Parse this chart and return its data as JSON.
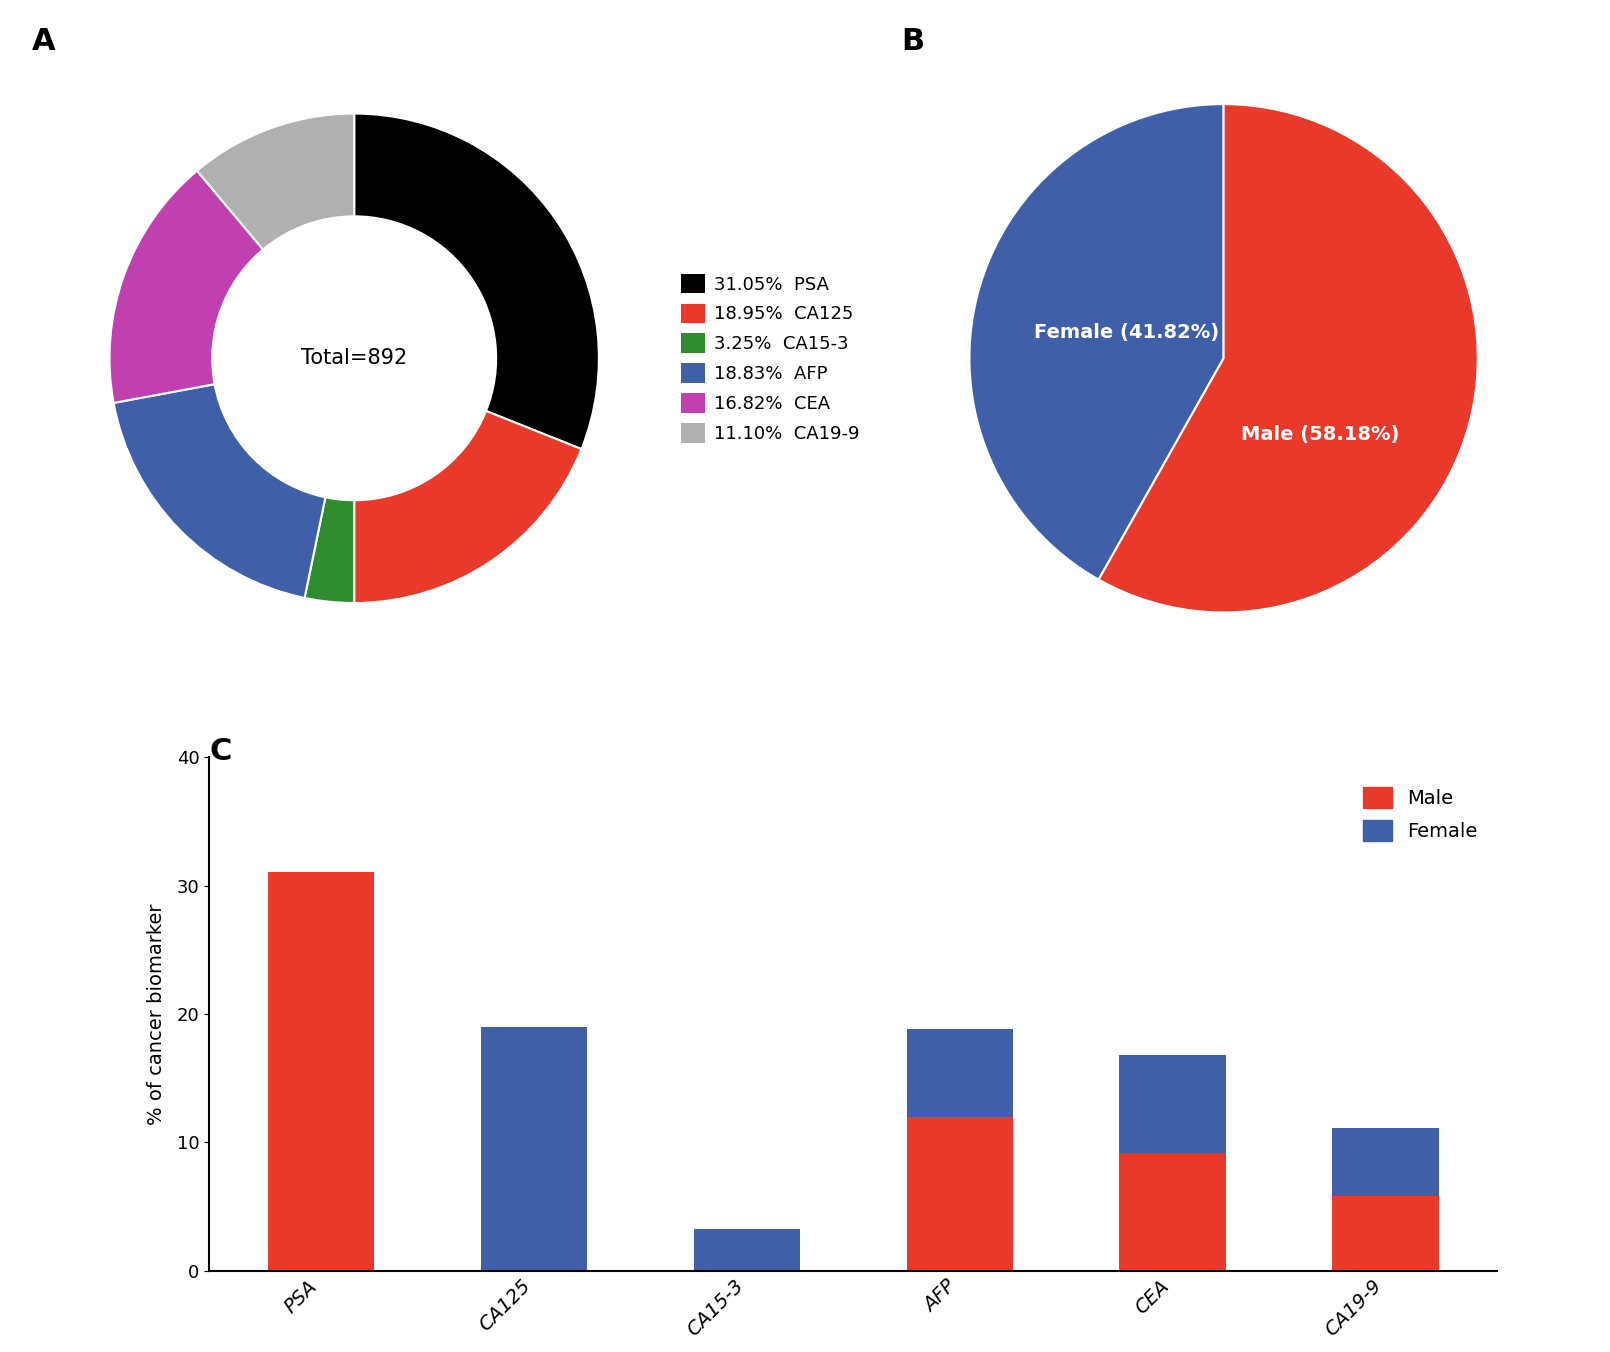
{
  "donut_labels": [
    "PSA",
    "CA125",
    "CA15-3",
    "AFP",
    "CEA",
    "CA19-9"
  ],
  "donut_values": [
    31.05,
    18.95,
    3.25,
    18.83,
    16.82,
    11.1
  ],
  "donut_colors": [
    "#000000",
    "#e8392a",
    "#2e8b2e",
    "#3f5fa8",
    "#c040b0",
    "#b0b0b0"
  ],
  "donut_center_text": "Total=892",
  "donut_legend_labels": [
    "31.05%  PSA",
    "18.95%  CA125",
    "3.25%  CA15-3",
    "18.83%  AFP",
    "16.82%  CEA",
    "11.10%  CA19-9"
  ],
  "pie_values": [
    41.82,
    58.18
  ],
  "pie_colors": [
    "#3f5fa8",
    "#e8392a"
  ],
  "pie_label_female": "Female (41.82%)",
  "pie_label_male": "Male (58.18%)",
  "bar_categories": [
    "PSA",
    "CA125",
    "CA15-3",
    "AFP",
    "CEA",
    "CA19-9"
  ],
  "bar_male": [
    31.05,
    0.0,
    0.0,
    12.0,
    9.2,
    5.8
  ],
  "bar_female": [
    0.0,
    18.95,
    3.25,
    6.83,
    7.62,
    5.3
  ],
  "bar_male_color": "#e8392a",
  "bar_female_color": "#3f5fa8",
  "bar_ylabel": "% of cancer biomarker",
  "bar_ylim": [
    0,
    40
  ],
  "bar_yticks": [
    0,
    10,
    20,
    30,
    40
  ],
  "label_fontsize": 22,
  "tick_fontsize": 13,
  "axis_label_fontsize": 14
}
